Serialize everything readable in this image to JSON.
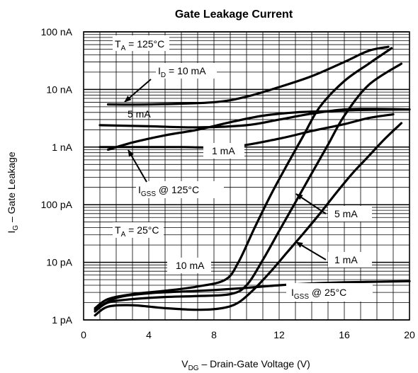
{
  "chart_data": {
    "type": "line",
    "title": "Gate Leakage Current",
    "xlabel": {
      "main": "V",
      "sub": "DG",
      "rest": " – Drain-Gate Voltage (V)"
    },
    "ylabel": {
      "main": "I",
      "sub": "G",
      "rest": " – Gate Leakage"
    },
    "x_scale": "linear",
    "y_scale": "log",
    "xlim": [
      0,
      20
    ],
    "ylim": [
      1e-12,
      1e-07
    ],
    "x_ticks": [
      0,
      4,
      8,
      12,
      16,
      20
    ],
    "x_tick_labels": [
      "0",
      "4",
      "8",
      "12",
      "16",
      "20"
    ],
    "y_ticks": [
      1e-12,
      1e-11,
      1e-10,
      1e-09,
      1e-08,
      1e-07
    ],
    "y_tick_labels": [
      "1 pA",
      "10 pA",
      "100 pA",
      "1 nA",
      "10 nA",
      "100 nA"
    ],
    "grid": true,
    "series": [
      {
        "name": "I_D = 10 mA, T_A = 125°C",
        "points": [
          [
            1.5,
            5.5e-09
          ],
          [
            4,
            5.5e-09
          ],
          [
            8,
            6e-09
          ],
          [
            10,
            7.5e-09
          ],
          [
            12,
            1.1e-08
          ],
          [
            14,
            1.7e-08
          ],
          [
            16,
            3e-08
          ],
          [
            17.5,
            4.7e-08
          ],
          [
            18.7,
            5.5e-08
          ]
        ]
      },
      {
        "name": "5 mA, T_A = 125°C",
        "points": [
          [
            1,
            2.4e-09
          ],
          [
            4,
            2.3e-09
          ],
          [
            7,
            2.2e-09
          ],
          [
            10,
            2.4e-09
          ],
          [
            12,
            3e-09
          ],
          [
            14,
            3.8e-09
          ],
          [
            16,
            4.5e-09
          ],
          [
            18,
            4.6e-09
          ],
          [
            20,
            4.5e-09
          ]
        ]
      },
      {
        "name": "1 mA, T_A = 125°C",
        "points": [
          [
            1,
            1e-09
          ],
          [
            3,
            1e-09
          ],
          [
            6,
            1e-09
          ],
          [
            9,
            1e-09
          ],
          [
            12,
            1.4e-09
          ],
          [
            14,
            1.9e-09
          ],
          [
            16,
            2.5e-09
          ],
          [
            17.5,
            3.2e-09
          ],
          [
            19,
            3.7e-09
          ]
        ]
      },
      {
        "name": "I_GSS @ 125°C",
        "points": [
          [
            1.5,
            9e-10
          ],
          [
            3,
            1.2e-09
          ],
          [
            5,
            1.6e-09
          ],
          [
            7,
            2e-09
          ],
          [
            9,
            2.7e-09
          ],
          [
            11,
            3.5e-09
          ],
          [
            13,
            4e-09
          ],
          [
            15,
            4.2e-09
          ],
          [
            17,
            4.4e-09
          ],
          [
            20,
            4.5e-09
          ]
        ]
      },
      {
        "name": "10 mA, T_A = 25°C",
        "points": [
          [
            0.7,
            1.6e-12
          ],
          [
            1.5,
            2.3e-12
          ],
          [
            3,
            2.8e-12
          ],
          [
            5,
            3.2e-12
          ],
          [
            7,
            3.8e-12
          ],
          [
            8.7,
            5e-12
          ],
          [
            9.5,
            1e-11
          ],
          [
            10.5,
            4e-11
          ],
          [
            11.5,
            1.5e-10
          ],
          [
            12.5,
            5e-10
          ],
          [
            13.5,
            1.6e-09
          ],
          [
            14.5,
            5e-09
          ],
          [
            16,
            1.4e-08
          ],
          [
            17.5,
            2.8e-08
          ],
          [
            18.9,
            5.2e-08
          ]
        ]
      },
      {
        "name": "5 mA, T_A = 25°C",
        "points": [
          [
            0.7,
            1.4e-12
          ],
          [
            1.5,
            2e-12
          ],
          [
            3,
            2.3e-12
          ],
          [
            5,
            2.5e-12
          ],
          [
            7,
            2.6e-12
          ],
          [
            9,
            2.8e-12
          ],
          [
            10,
            4e-12
          ],
          [
            11,
            1.1e-11
          ],
          [
            12,
            3.5e-11
          ],
          [
            13,
            1.1e-10
          ],
          [
            14,
            3.5e-10
          ],
          [
            15,
            1.1e-09
          ],
          [
            16,
            3.5e-09
          ],
          [
            17.5,
            1.2e-08
          ],
          [
            19.5,
            2.8e-08
          ]
        ]
      },
      {
        "name": "1 mA, T_A = 25°C",
        "points": [
          [
            0.7,
            1.2e-12
          ],
          [
            1.5,
            1.7e-12
          ],
          [
            3,
            1.8e-12
          ],
          [
            5,
            1.6e-12
          ],
          [
            7,
            1.5e-12
          ],
          [
            8.5,
            1.6e-12
          ],
          [
            9.5,
            2e-12
          ],
          [
            10.5,
            3.5e-12
          ],
          [
            11.5,
            7e-12
          ],
          [
            12.5,
            1.5e-11
          ],
          [
            13.5,
            3.2e-11
          ],
          [
            14.5,
            7e-11
          ],
          [
            15.5,
            1.6e-10
          ],
          [
            16.5,
            3.5e-10
          ],
          [
            17.5,
            7e-10
          ],
          [
            18.5,
            1.4e-09
          ],
          [
            19.5,
            2.6e-09
          ]
        ]
      },
      {
        "name": "I_GSS @ 25°C",
        "points": [
          [
            0.7,
            1.5e-12
          ],
          [
            2,
            2.4e-12
          ],
          [
            4,
            2.9e-12
          ],
          [
            6,
            3.1e-12
          ],
          [
            8,
            3.3e-12
          ],
          [
            10,
            3.6e-12
          ],
          [
            12,
            4e-12
          ],
          [
            14,
            4.3e-12
          ],
          [
            16,
            4.5e-12
          ],
          [
            18,
            4.6e-12
          ],
          [
            20,
            4.7e-12
          ]
        ]
      }
    ],
    "annotations": {
      "ta_125": {
        "main": "T",
        "sub": "A",
        "rest": " = 125°C"
      },
      "id_10ma": {
        "main": "I",
        "sub": "D",
        "rest": " = 10 mA"
      },
      "ma5_hot": "5 mA",
      "ma1_hot": "1 mA",
      "igss_125": {
        "main": "I",
        "sub": "GSS",
        "rest": " @ 125°C"
      },
      "ta_25": {
        "main": "T",
        "sub": "A",
        "rest": " = 25°C"
      },
      "ma10_cold": "10 mA",
      "ma5_cold": "5 mA",
      "ma1_cold": "1 mA",
      "igss_25": {
        "main": "I",
        "sub": "GSS",
        "rest": " @ 25°C"
      }
    }
  }
}
